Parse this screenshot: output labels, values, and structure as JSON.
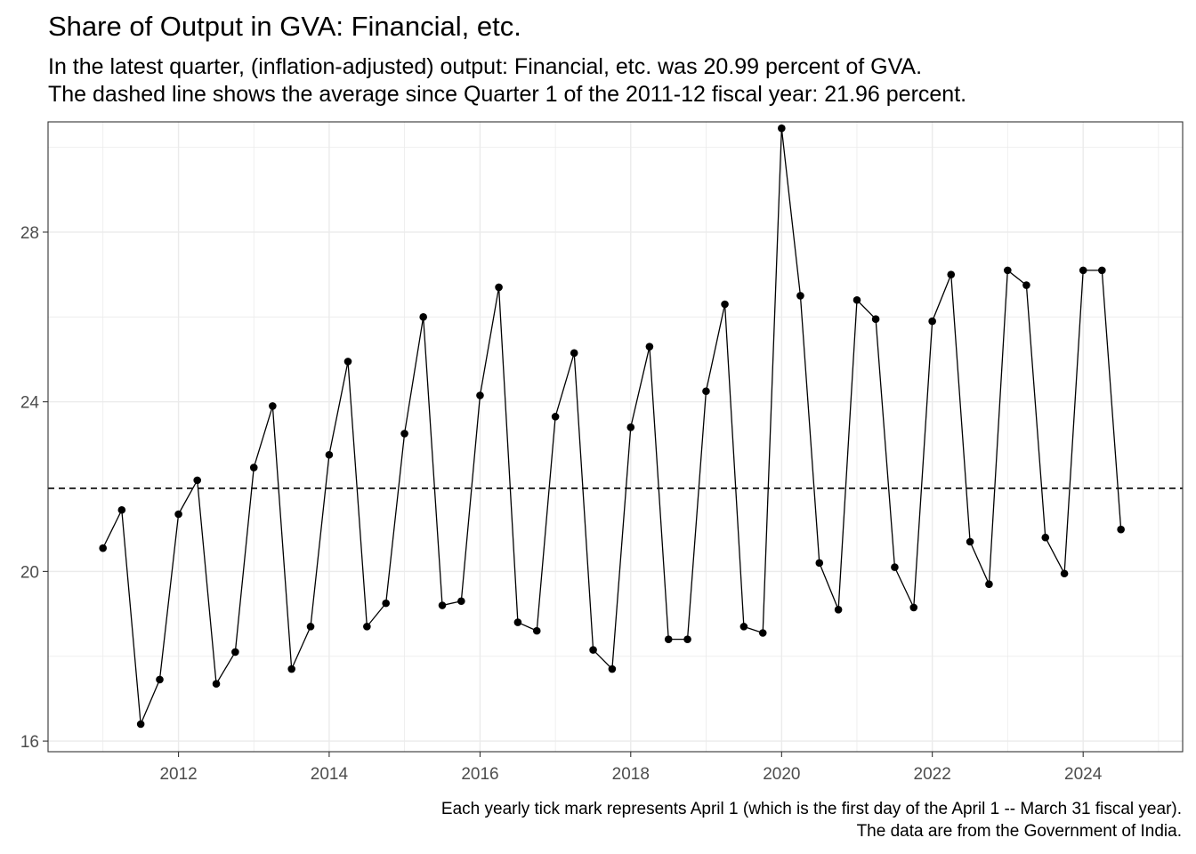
{
  "title": "Share of Output in GVA: Financial, etc.",
  "subtitle_lines": [
    "In the latest quarter, (inflation-adjusted) output: Financial, etc. was 20.99 percent of GVA.",
    "The dashed line shows the average since Quarter 1 of the 2011-12 fiscal year: 21.96 percent."
  ],
  "caption_lines": [
    "Each yearly tick mark represents April 1 (which is the first day of the April 1 -- March 31 fiscal year).",
    "The data are from the Government of India."
  ],
  "chart_data": {
    "type": "line",
    "x_axis": {
      "type": "date",
      "range": [
        "2010-07-09",
        "2025-07-27"
      ],
      "ticks": [
        "2012-04-01",
        "2014-04-01",
        "2016-04-01",
        "2018-04-01",
        "2020-04-01",
        "2022-04-01",
        "2024-04-01"
      ],
      "tick_labels": [
        "2012",
        "2014",
        "2016",
        "2018",
        "2020",
        "2022",
        "2024"
      ]
    },
    "y_axis": {
      "range": [
        15.75,
        30.6
      ],
      "ticks": [
        16,
        20,
        24,
        28
      ],
      "tick_labels": [
        "16",
        "20",
        "24",
        "28"
      ]
    },
    "grid": true,
    "reference_line": {
      "value": 21.96,
      "style": "dashed"
    },
    "series": [
      {
        "points": [
          [
            "2011-04-01",
            20.55
          ],
          [
            "2011-07-01",
            21.45
          ],
          [
            "2011-10-01",
            16.4
          ],
          [
            "2012-01-01",
            17.45
          ],
          [
            "2012-04-01",
            21.35
          ],
          [
            "2012-07-01",
            22.15
          ],
          [
            "2012-10-01",
            17.35
          ],
          [
            "2013-01-01",
            18.1
          ],
          [
            "2013-04-01",
            22.45
          ],
          [
            "2013-07-01",
            23.9
          ],
          [
            "2013-10-01",
            17.7
          ],
          [
            "2014-01-01",
            18.7
          ],
          [
            "2014-04-01",
            22.75
          ],
          [
            "2014-07-01",
            24.95
          ],
          [
            "2014-10-01",
            18.7
          ],
          [
            "2015-01-01",
            19.25
          ],
          [
            "2015-04-01",
            23.25
          ],
          [
            "2015-07-01",
            26.0
          ],
          [
            "2015-10-01",
            19.2
          ],
          [
            "2016-01-01",
            19.3
          ],
          [
            "2016-04-01",
            24.15
          ],
          [
            "2016-07-01",
            26.7
          ],
          [
            "2016-10-01",
            18.8
          ],
          [
            "2017-01-01",
            18.6
          ],
          [
            "2017-04-01",
            23.65
          ],
          [
            "2017-07-01",
            25.15
          ],
          [
            "2017-10-01",
            18.15
          ],
          [
            "2018-01-01",
            17.7
          ],
          [
            "2018-04-01",
            23.4
          ],
          [
            "2018-07-01",
            25.3
          ],
          [
            "2018-10-01",
            18.4
          ],
          [
            "2019-01-01",
            18.4
          ],
          [
            "2019-04-01",
            24.25
          ],
          [
            "2019-07-01",
            26.3
          ],
          [
            "2019-10-01",
            18.7
          ],
          [
            "2020-01-01",
            18.55
          ],
          [
            "2020-04-01",
            30.45
          ],
          [
            "2020-07-01",
            26.5
          ],
          [
            "2020-10-01",
            20.2
          ],
          [
            "2021-01-01",
            19.1
          ],
          [
            "2021-04-01",
            26.4
          ],
          [
            "2021-07-01",
            25.95
          ],
          [
            "2021-10-01",
            20.1
          ],
          [
            "2022-01-01",
            19.15
          ],
          [
            "2022-04-01",
            25.9
          ],
          [
            "2022-07-01",
            27.0
          ],
          [
            "2022-10-01",
            20.7
          ],
          [
            "2023-01-01",
            19.7
          ],
          [
            "2023-04-01",
            27.1
          ],
          [
            "2023-07-01",
            26.75
          ],
          [
            "2023-10-01",
            20.8
          ],
          [
            "2024-01-01",
            19.95
          ],
          [
            "2024-04-01",
            27.1
          ],
          [
            "2024-07-01",
            27.1
          ],
          [
            "2024-10-01",
            20.99
          ]
        ]
      }
    ]
  }
}
